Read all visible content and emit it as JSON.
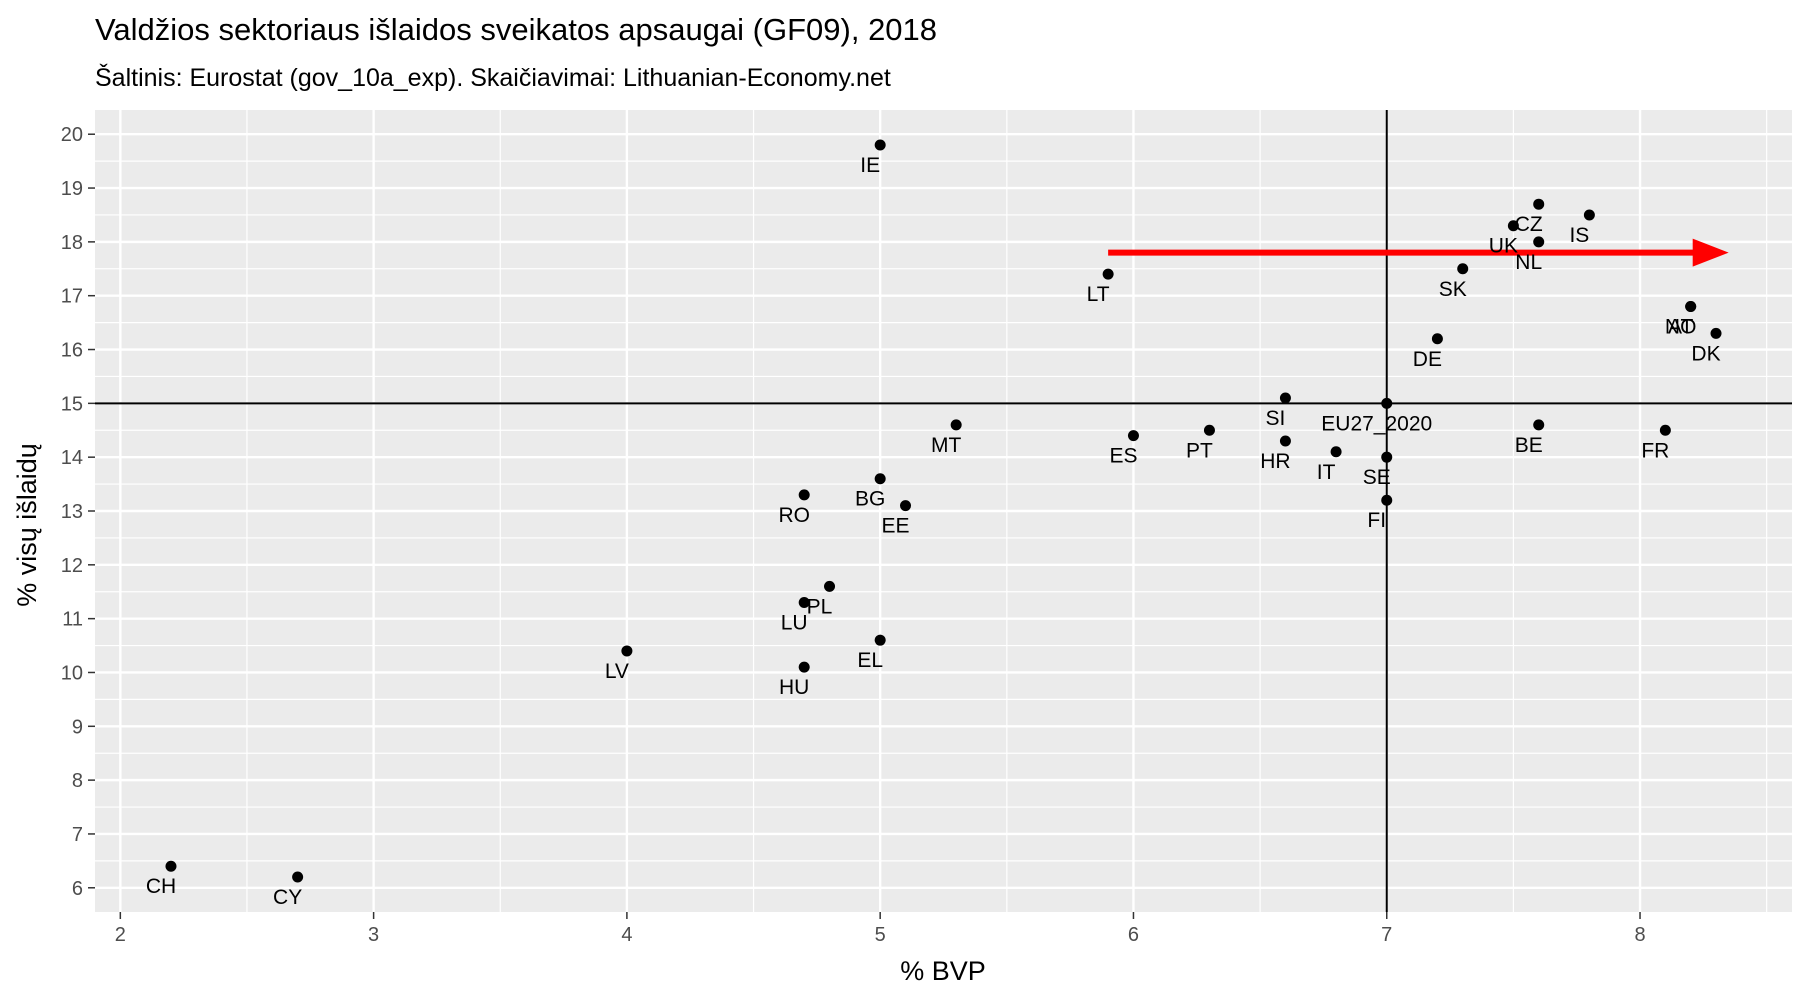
{
  "chart_data": {
    "type": "scatter",
    "title": "Valdžios sektoriaus išlaidos sveikatos apsaugai (GF09), 2018",
    "subtitle": "Šaltinis: Eurostat (gov_10a_exp). Skaičiavimai: Lithuanian-Economy.net",
    "xlabel": "% BVP",
    "ylabel": "% visų išlaidų",
    "xlim": [
      1.9,
      8.6
    ],
    "ylim": [
      5.55,
      20.45
    ],
    "x_ticks": [
      "2",
      "3",
      "4",
      "5",
      "6",
      "7",
      "8"
    ],
    "y_ticks": [
      "6",
      "7",
      "8",
      "9",
      "10",
      "11",
      "12",
      "13",
      "14",
      "15",
      "16",
      "17",
      "18",
      "19",
      "20"
    ],
    "reference_lines": {
      "vertical_x": 7.0,
      "horizontal_y": 15.0
    },
    "arrow": {
      "from": [
        5.9,
        17.8
      ],
      "to": [
        8.35,
        17.8
      ],
      "color": "#ff0000"
    },
    "panel_background": "#ebebeb",
    "grid": true,
    "point_color": "#000000",
    "points": [
      {
        "label": "IE",
        "x": 5.0,
        "y": 19.8
      },
      {
        "label": "CZ",
        "x": 7.6,
        "y": 18.7
      },
      {
        "label": "IS",
        "x": 7.8,
        "y": 18.5
      },
      {
        "label": "UK",
        "x": 7.5,
        "y": 18.3
      },
      {
        "label": "NL",
        "x": 7.6,
        "y": 18.0
      },
      {
        "label": "SK",
        "x": 7.3,
        "y": 17.5
      },
      {
        "label": "LT",
        "x": 5.9,
        "y": 17.4
      },
      {
        "label": "AT",
        "x": 8.2,
        "y": 16.8
      },
      {
        "label": "NO",
        "x": 8.2,
        "y": 16.8
      },
      {
        "label": "DK",
        "x": 8.3,
        "y": 16.3
      },
      {
        "label": "DE",
        "x": 7.2,
        "y": 16.2
      },
      {
        "label": "SI",
        "x": 6.6,
        "y": 15.1
      },
      {
        "label": "EU27_2020",
        "x": 7.0,
        "y": 15.0
      },
      {
        "label": "MT",
        "x": 5.3,
        "y": 14.6
      },
      {
        "label": "BE",
        "x": 7.6,
        "y": 14.6
      },
      {
        "label": "PT",
        "x": 6.3,
        "y": 14.5
      },
      {
        "label": "FR",
        "x": 8.1,
        "y": 14.5
      },
      {
        "label": "ES",
        "x": 6.0,
        "y": 14.4
      },
      {
        "label": "HR",
        "x": 6.6,
        "y": 14.3
      },
      {
        "label": "IT",
        "x": 6.8,
        "y": 14.1
      },
      {
        "label": "SE",
        "x": 7.0,
        "y": 14.0
      },
      {
        "label": "BG",
        "x": 5.0,
        "y": 13.6
      },
      {
        "label": "RO",
        "x": 4.7,
        "y": 13.3
      },
      {
        "label": "FI",
        "x": 7.0,
        "y": 13.2
      },
      {
        "label": "EE",
        "x": 5.1,
        "y": 13.1
      },
      {
        "label": "PL",
        "x": 4.8,
        "y": 11.6
      },
      {
        "label": "LU",
        "x": 4.7,
        "y": 11.3
      },
      {
        "label": "EL",
        "x": 5.0,
        "y": 10.6
      },
      {
        "label": "LV",
        "x": 4.0,
        "y": 10.4
      },
      {
        "label": "HU",
        "x": 4.7,
        "y": 10.1
      },
      {
        "label": "CH",
        "x": 2.2,
        "y": 6.4
      },
      {
        "label": "CY",
        "x": 2.7,
        "y": 6.2
      }
    ]
  }
}
